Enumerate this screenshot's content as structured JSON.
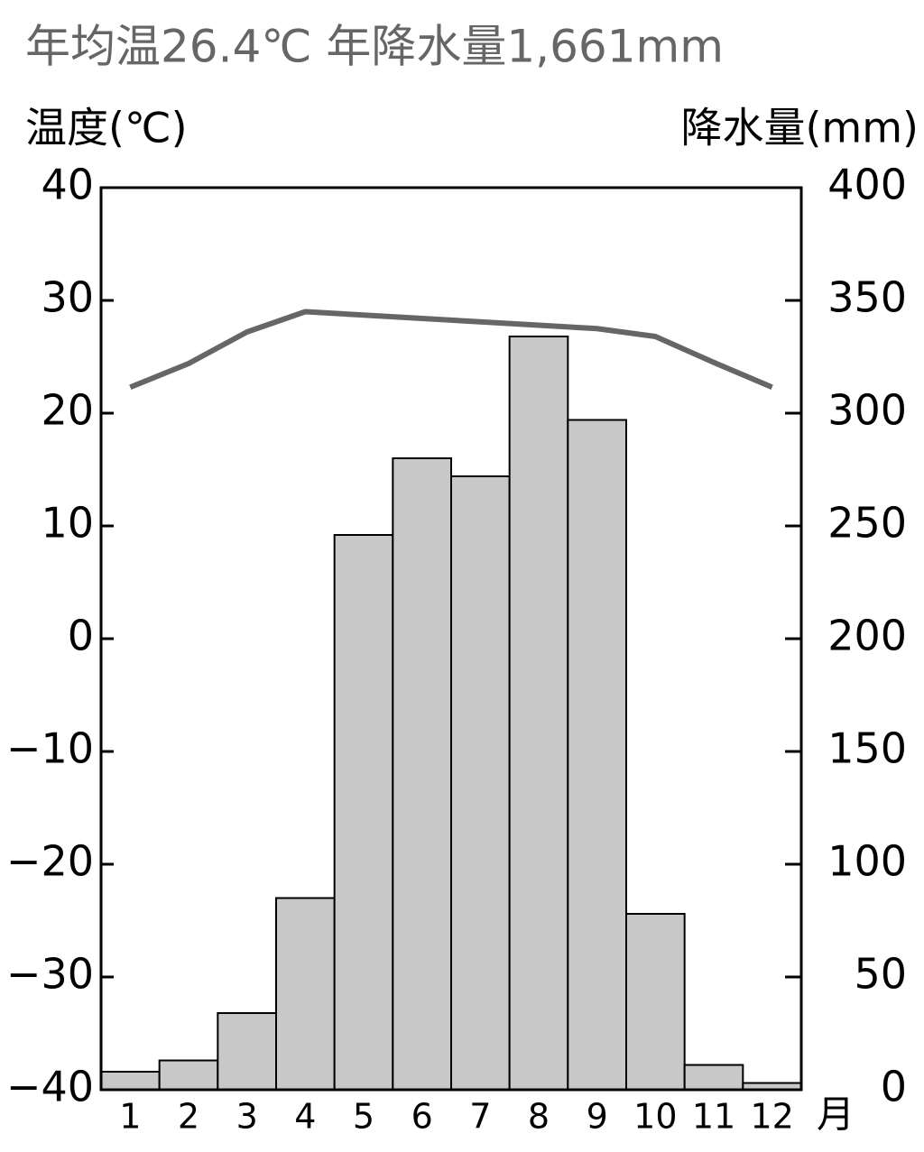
{
  "chart_data": {
    "type": "climate",
    "title": "年均温26.4℃ 年降水量1,661mm",
    "ylabel": "温度(℃)",
    "y2label": "降水量(mm)",
    "xlabel": "月",
    "categories": [
      "1",
      "2",
      "3",
      "4",
      "5",
      "6",
      "7",
      "8",
      "9",
      "10",
      "11",
      "12"
    ],
    "series": [
      {
        "name": "降水量",
        "type": "bar",
        "axis": "y2",
        "color": "#c8c8c8",
        "values": [
          8,
          13,
          34,
          85,
          246,
          280,
          272,
          334,
          297,
          78,
          11,
          3
        ]
      },
      {
        "name": "気温",
        "type": "line",
        "axis": "y",
        "color": "#666666",
        "values": [
          22.3,
          24.4,
          27.2,
          29.0,
          28.7,
          28.4,
          28.1,
          27.8,
          27.5,
          26.8,
          24.5,
          22.3
        ]
      }
    ],
    "ylim": [
      -40,
      40
    ],
    "yticks": [
      {
        "value": -40,
        "label": "−40"
      },
      {
        "value": -30,
        "label": "−30"
      },
      {
        "value": -20,
        "label": "−20"
      },
      {
        "value": -10,
        "label": "−10"
      },
      0,
      10,
      20,
      30,
      40
    ],
    "y2lim": [
      0,
      400
    ],
    "y2ticks": [
      0,
      50,
      100,
      150,
      200,
      250,
      300,
      350,
      400
    ]
  }
}
